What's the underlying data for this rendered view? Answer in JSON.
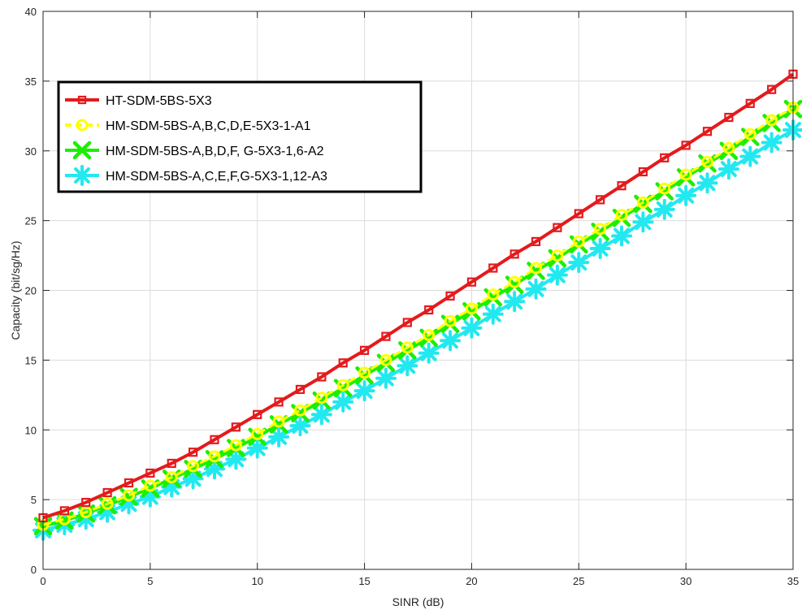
{
  "chart_data": {
    "type": "line",
    "title": "",
    "xlabel": "SINR (dB)",
    "ylabel": "Capacity (bit/sg/Hz)",
    "xlim": [
      0,
      35
    ],
    "ylim": [
      0,
      40
    ],
    "xticks": [
      0,
      5,
      10,
      15,
      20,
      25,
      30,
      35
    ],
    "yticks": [
      0,
      5,
      10,
      15,
      20,
      25,
      30,
      35,
      40
    ],
    "grid": true,
    "legend_position": "top-left",
    "x": [
      0,
      1,
      2,
      3,
      4,
      5,
      6,
      7,
      8,
      9,
      10,
      11,
      12,
      13,
      14,
      15,
      16,
      17,
      18,
      19,
      20,
      21,
      22,
      23,
      24,
      25,
      26,
      27,
      28,
      29,
      30,
      31,
      32,
      33,
      34,
      35
    ],
    "series": [
      {
        "name": "HT-SDM-5BS-5X3",
        "color": "#e41a1c",
        "marker": "square",
        "values": [
          3.7,
          4.2,
          4.8,
          5.5,
          6.2,
          6.9,
          7.6,
          8.4,
          9.3,
          10.2,
          11.1,
          12.0,
          12.9,
          13.8,
          14.8,
          15.7,
          16.7,
          17.7,
          18.6,
          19.6,
          20.6,
          21.6,
          22.6,
          23.5,
          24.5,
          25.5,
          26.5,
          27.5,
          28.5,
          29.5,
          30.4,
          31.4,
          32.4,
          33.4,
          34.4,
          35.5
        ]
      },
      {
        "name": "HM-SDM-5BS-A,B,C,D,E-5X3-1-A1",
        "color": "#ffff00",
        "marker": "circle",
        "values": [
          3.2,
          3.6,
          4.1,
          4.7,
          5.3,
          6.0,
          6.6,
          7.4,
          8.1,
          8.9,
          9.7,
          10.6,
          11.4,
          12.3,
          13.2,
          14.1,
          15.0,
          15.9,
          16.8,
          17.8,
          18.7,
          19.7,
          20.6,
          21.6,
          22.5,
          23.5,
          24.4,
          25.4,
          26.3,
          27.3,
          28.3,
          29.2,
          30.2,
          31.2,
          32.2,
          33.1
        ]
      },
      {
        "name": "HM-SDM-5BS-A,B,D,F, G-5X3-1,6-A2",
        "color": "#1aef00",
        "marker": "x",
        "values": [
          3.1,
          3.5,
          4.0,
          4.6,
          5.2,
          5.8,
          6.5,
          7.2,
          7.9,
          8.7,
          9.5,
          10.4,
          11.2,
          12.1,
          13.0,
          13.9,
          14.8,
          15.7,
          16.6,
          17.6,
          18.5,
          19.5,
          20.4,
          21.4,
          22.3,
          23.3,
          24.2,
          25.2,
          26.2,
          27.1,
          28.1,
          29.1,
          30.0,
          31.0,
          32.0,
          33.0
        ]
      },
      {
        "name": "HM-SDM-5BS-A,C,E,F,G-5X3-1,12-A3",
        "color": "#22e8f0",
        "marker": "star",
        "values": [
          2.8,
          3.2,
          3.6,
          4.1,
          4.7,
          5.2,
          5.9,
          6.5,
          7.2,
          7.9,
          8.7,
          9.5,
          10.3,
          11.1,
          12.0,
          12.8,
          13.7,
          14.6,
          15.5,
          16.4,
          17.3,
          18.3,
          19.2,
          20.1,
          21.1,
          22.0,
          23.0,
          23.9,
          24.9,
          25.8,
          26.8,
          27.7,
          28.7,
          29.6,
          30.6,
          31.5
        ]
      }
    ]
  }
}
